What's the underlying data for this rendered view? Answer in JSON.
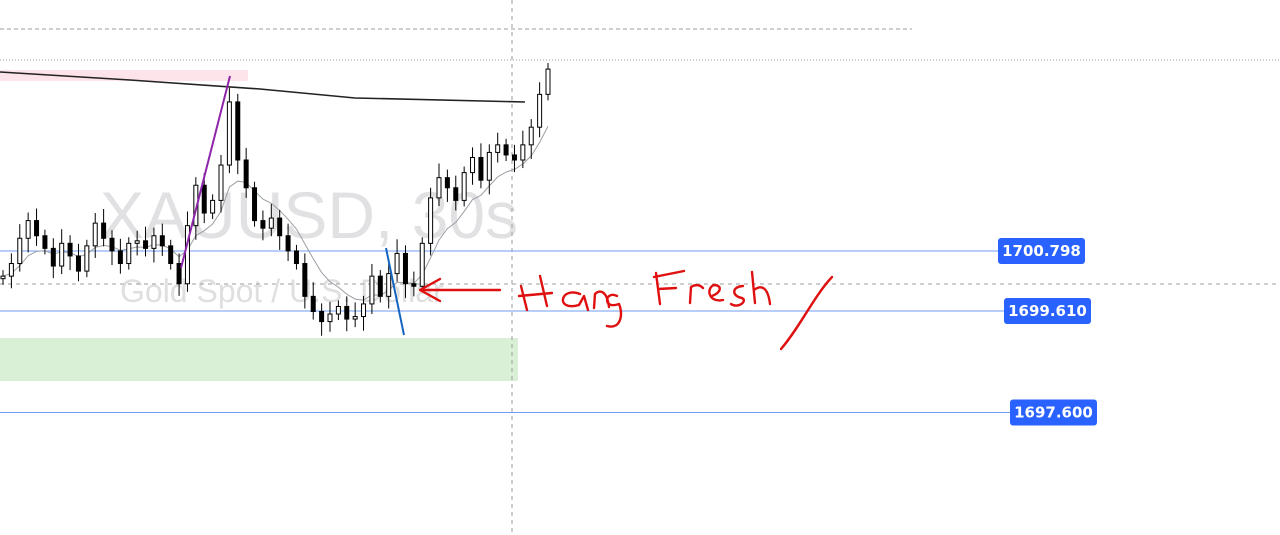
{
  "chart_data": {
    "type": "candlestick",
    "symbol_watermark": "XAUUSD, 30s",
    "symbol_description": "Gold Spot / U.S. Dollar",
    "price_lines": [
      {
        "label": "1700.798",
        "value": 1700.798
      },
      {
        "label": "1699.610",
        "value": 1699.61
      },
      {
        "label": "1697.600",
        "value": 1697.6
      }
    ],
    "handwritten_note": "Hang Fresh",
    "colors": {
      "price_line": "#6f9cf5",
      "price_tag": "#2962ff",
      "candle": "#000000",
      "demand_zone": "#d9efd6",
      "supply_zone": "#fde4ea",
      "ma": "#9aa0a6",
      "trendline": "#222222",
      "impulse_leg_1": "#8e24aa",
      "impulse_leg_2": "#1565c0",
      "annotation": "#e01010"
    },
    "close_path": [
      1700.3,
      1700.55,
      1701.05,
      1701.4,
      1701.1,
      1700.85,
      1700.5,
      1700.95,
      1700.7,
      1700.4,
      1700.9,
      1701.35,
      1701.05,
      1700.8,
      1700.55,
      1700.95,
      1701.0,
      1700.85,
      1701.1,
      1700.9,
      1700.55,
      1700.15,
      1701.3,
      1702.1,
      1701.55,
      1701.8,
      1702.5,
      1703.75,
      1702.6,
      1702.05,
      1701.4,
      1701.25,
      1701.45,
      1701.1,
      1700.8,
      1700.55,
      1699.9,
      1699.6,
      1699.4,
      1699.55,
      1699.7,
      1699.45,
      1699.5,
      1699.75,
      1700.3,
      1699.9,
      1700.35,
      1700.75,
      1700.15,
      1700.1,
      1700.95,
      1701.85,
      1702.25,
      1702.05,
      1701.8,
      1702.35,
      1702.65,
      1702.2,
      1702.75,
      1702.9,
      1702.7,
      1702.6,
      1702.9,
      1703.25,
      1703.9,
      1704.4
    ]
  }
}
